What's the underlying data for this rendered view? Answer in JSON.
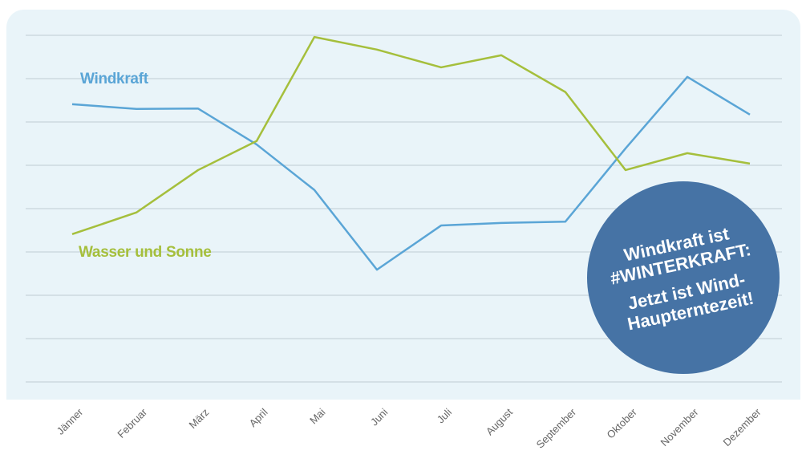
{
  "colors": {
    "windkraft": "#5aa5d6",
    "wasser_sonne": "#a5bf3c",
    "badge": "#4673a5",
    "grid": "#cdd9e0",
    "background": "#e9f4f9"
  },
  "chart_data": {
    "type": "line",
    "title": "",
    "xlabel": "",
    "ylabel": "",
    "categories": [
      "Jänner",
      "Februar",
      "März",
      "April",
      "Mai",
      "Juni",
      "Juli",
      "August",
      "September",
      "Oktober",
      "November",
      "Dezember"
    ],
    "ylim": [
      0,
      8
    ],
    "grid": true,
    "y_tick_labels_shown": false,
    "series": [
      {
        "name": "Windkraft",
        "values": [
          6.41,
          6.3,
          6.31,
          5.48,
          4.43,
          2.59,
          3.61,
          3.67,
          3.7,
          5.39,
          7.04,
          6.17
        ]
      },
      {
        "name": "Wasser und Sonne",
        "values": [
          3.41,
          3.91,
          4.89,
          5.56,
          7.96,
          7.67,
          7.26,
          7.54,
          6.69,
          4.89,
          5.28,
          5.04
        ]
      }
    ],
    "annotation": {
      "lines": [
        "Windkraft ist",
        "#WINTERKRAFT:",
        "Jetzt ist Wind-",
        "Haupterntezeit!"
      ]
    }
  }
}
